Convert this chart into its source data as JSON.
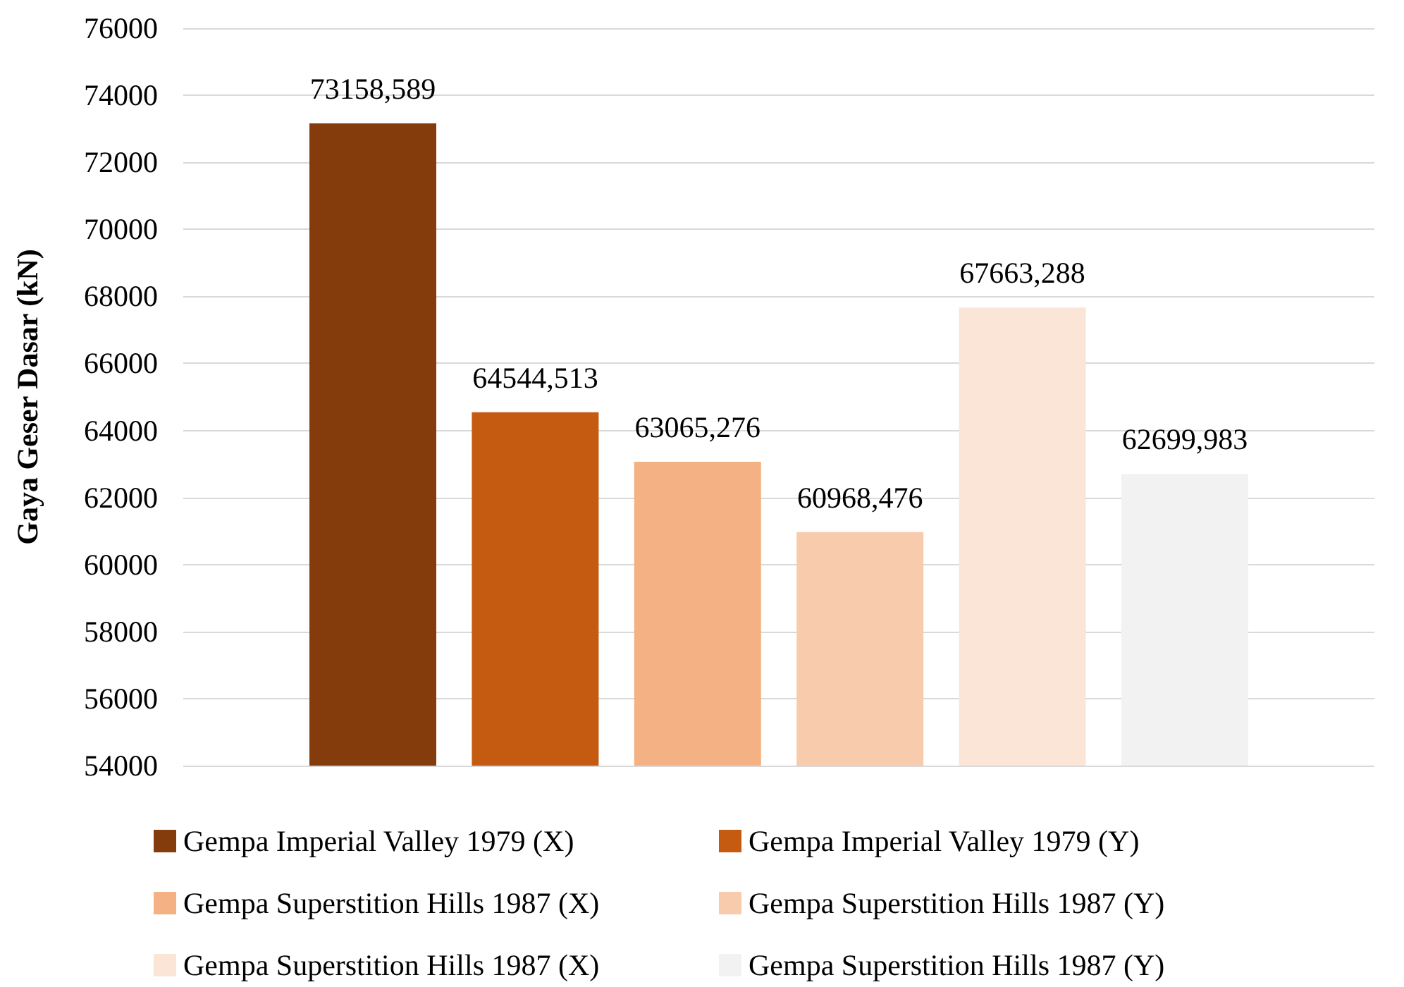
{
  "chart_data": {
    "type": "bar",
    "ylabel": "Gaya Geser Dasar (kN)",
    "categories": [
      null
    ],
    "series": [
      {
        "name": "Gempa Imperial Valley 1979 (X)",
        "color": "#843c0c",
        "values": [
          73158.589
        ],
        "value_labels": [
          "73158,589"
        ]
      },
      {
        "name": "Gempa Imperial Valley 1979 (Y)",
        "color": "#c55a11",
        "values": [
          64544.513
        ],
        "value_labels": [
          "64544,513"
        ]
      },
      {
        "name": "Gempa Superstition Hills 1987 (X)",
        "color": "#f4b183",
        "values": [
          63065.276
        ],
        "value_labels": [
          "63065,276"
        ]
      },
      {
        "name": "Gempa Superstition Hills 1987 (Y)",
        "color": "#f8cbad",
        "values": [
          60968.476
        ],
        "value_labels": [
          "60968,476"
        ]
      },
      {
        "name": "Gempa Superstition Hills 1987 (X)",
        "color": "#fbe5d6",
        "values": [
          67663.288
        ],
        "value_labels": [
          "67663,288"
        ]
      },
      {
        "name": "Gempa Superstition Hills 1987 (Y)",
        "color": "#f2f2f2",
        "values": [
          62699.983
        ],
        "value_labels": [
          "62699,983"
        ]
      }
    ],
    "ylim": [
      54000,
      76000
    ],
    "yticks": [
      54000,
      56000,
      58000,
      60000,
      62000,
      64000,
      66000,
      68000,
      70000,
      72000,
      74000,
      76000
    ],
    "grid": "y",
    "legend": "bottom"
  }
}
